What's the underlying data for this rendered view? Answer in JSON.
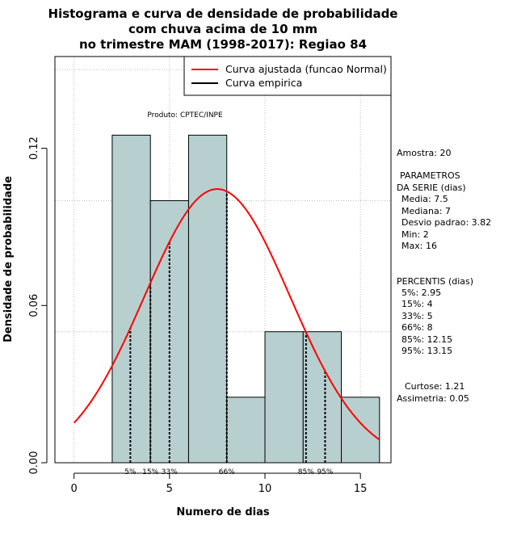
{
  "chart_data": {
    "type": "bar",
    "title_lines": [
      "Histograma e curva de densidade de probabilidade",
      "com chuva acima de 10 mm",
      "no trimestre MAM (1998-2017): Regiao 84"
    ],
    "xlabel": "Numero de dias",
    "ylabel": "Densidade de probabilidade",
    "xlim": [
      -1,
      16.6
    ],
    "ylim": [
      0,
      0.155
    ],
    "x_ticks": [
      0,
      5,
      10,
      15
    ],
    "y_ticks": [
      0.0,
      0.06,
      0.12
    ],
    "y_tick_labels": [
      "0.00",
      "0.06",
      "0.12"
    ],
    "grid": true,
    "bin_edges": [
      2,
      4,
      6,
      8,
      10,
      12,
      14,
      16
    ],
    "densities": [
      0.125,
      0.1,
      0.125,
      0.025,
      0.05,
      0.05,
      0.025
    ],
    "bar_color": "#b8cfcf",
    "normal_curve": {
      "mean": 7.5,
      "sd": 3.82,
      "color": "#ff0000"
    },
    "percentile_lines": [
      {
        "label": "5%",
        "x": 2.95
      },
      {
        "label": "15%",
        "x": 4
      },
      {
        "label": "33%",
        "x": 5
      },
      {
        "label": "66%",
        "x": 8
      },
      {
        "label": "85%",
        "x": 12.15
      },
      {
        "label": "95%",
        "x": 13.15
      }
    ],
    "legend": {
      "position": "top-right",
      "entries": [
        {
          "label": "Curva ajustada (funcao Normal)",
          "color": "#ff0000"
        },
        {
          "label": "Curva empirica",
          "color": "#000000"
        }
      ]
    },
    "product_label": "Produto: CPTEC/INPE"
  },
  "stats": {
    "amostra": "Amostra: 20",
    "param_title_1": "PARAMETROS",
    "param_title_2": "DA SERIE (dias)",
    "media": "Media: 7.5",
    "mediana": "Mediana: 7",
    "desvio": "Desvio padrao: 3.82",
    "min": "Min: 2",
    "max": "Max: 16",
    "percentis_title": "PERCENTIS (dias)",
    "p5": "5%: 2.95",
    "p15": "15%: 4",
    "p33": "33%: 5",
    "p66": "66%: 8",
    "p85": "85%: 12.15",
    "p95": "95%: 13.15",
    "curtose": "Curtose: 1.21",
    "assimetria": "Assimetria: 0.05"
  }
}
